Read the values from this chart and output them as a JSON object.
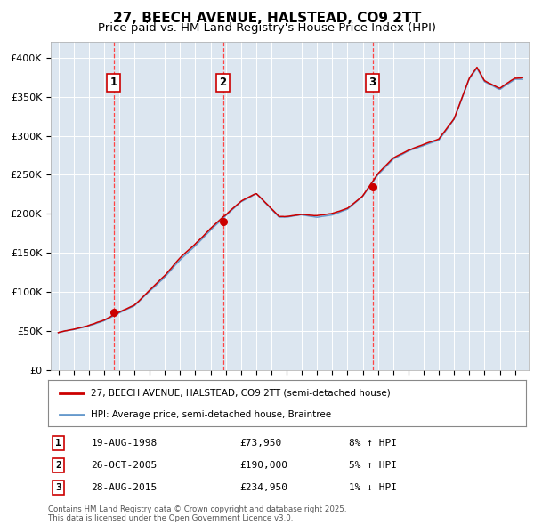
{
  "title": "27, BEECH AVENUE, HALSTEAD, CO9 2TT",
  "subtitle": "Price paid vs. HM Land Registry's House Price Index (HPI)",
  "ylim": [
    0,
    420000
  ],
  "yticks": [
    0,
    50000,
    100000,
    150000,
    200000,
    250000,
    300000,
    350000,
    400000
  ],
  "ytick_labels": [
    "£0",
    "£50K",
    "£100K",
    "£150K",
    "£200K",
    "£250K",
    "£300K",
    "£350K",
    "£400K"
  ],
  "sale_points": [
    {
      "year": 1998.63,
      "price": 73950,
      "label": "1"
    },
    {
      "year": 2005.82,
      "price": 190000,
      "label": "2"
    },
    {
      "year": 2015.65,
      "price": 234950,
      "label": "3"
    }
  ],
  "vline_color": "#ff4444",
  "red_line_color": "#cc0000",
  "blue_line_color": "#6699cc",
  "plot_bg_color": "#dce6f0",
  "legend_label_red": "27, BEECH AVENUE, HALSTEAD, CO9 2TT (semi-detached house)",
  "legend_label_blue": "HPI: Average price, semi-detached house, Braintree",
  "table_rows": [
    {
      "num": "1",
      "date": "19-AUG-1998",
      "price": "£73,950",
      "change": "8% ↑ HPI"
    },
    {
      "num": "2",
      "date": "26-OCT-2005",
      "price": "£190,000",
      "change": "5% ↑ HPI"
    },
    {
      "num": "3",
      "date": "28-AUG-2015",
      "price": "£234,950",
      "change": "1% ↓ HPI"
    }
  ],
  "footnote": "Contains HM Land Registry data © Crown copyright and database right 2025.\nThis data is licensed under the Open Government Licence v3.0.",
  "keypoints_t": [
    1995,
    1996,
    1997,
    1998,
    1999,
    2000,
    2001,
    2002,
    2003,
    2004,
    2005,
    2006,
    2007,
    2008,
    2009,
    2009.5,
    2010,
    2011,
    2012,
    2013,
    2014,
    2015,
    2016,
    2017,
    2018,
    2019,
    2020,
    2021,
    2022,
    2022.5,
    2023,
    2024,
    2025
  ],
  "keypoints_hpi": [
    48000,
    52000,
    57000,
    64000,
    74000,
    83000,
    102000,
    120000,
    142000,
    160000,
    180000,
    198000,
    216000,
    226000,
    206000,
    196000,
    196000,
    199000,
    196000,
    199000,
    206000,
    222000,
    250000,
    270000,
    280000,
    287000,
    294000,
    320000,
    372000,
    386000,
    369000,
    359000,
    372000
  ],
  "title_fontsize": 11,
  "subtitle_fontsize": 9.5,
  "tick_fontsize": 8
}
